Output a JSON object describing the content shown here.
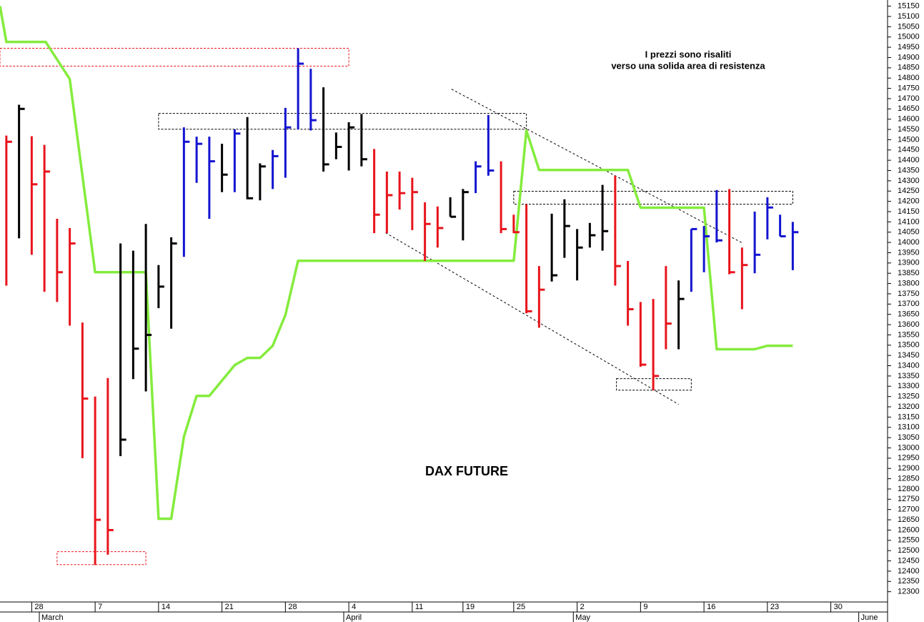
{
  "chart_data": {
    "type": "ohlc",
    "title": "DAX FUTURE",
    "annotations": [
      "I prezzi sono risaliti",
      "verso una solida area di resistenza"
    ],
    "x": [
      0,
      1,
      2,
      3,
      4,
      5,
      6,
      7,
      8,
      9,
      10,
      11,
      12,
      13,
      14,
      15,
      16,
      17,
      18,
      19,
      20,
      21,
      22,
      23,
      24,
      25,
      26,
      27,
      28,
      29,
      30,
      31,
      32,
      33,
      34,
      35,
      36,
      37,
      38,
      39,
      40,
      41,
      42,
      43,
      44,
      45,
      46,
      47,
      48,
      49,
      50,
      51,
      52,
      53,
      54,
      55,
      56,
      57,
      58,
      59,
      60,
      61,
      62
    ],
    "high": [
      14520,
      14670,
      14517,
      14475,
      14115,
      14070,
      13610,
      13250,
      13340,
      13995,
      13960,
      14090,
      13890,
      14025,
      14560,
      14515,
      14515,
      14480,
      14550,
      14610,
      14385,
      14450,
      14655,
      14945,
      14845,
      14755,
      14535,
      14585,
      14625,
      14455,
      14345,
      14345,
      14315,
      14195,
      14175,
      14220,
      14260,
      14395,
      14620,
      14395,
      14135,
      14185,
      13885,
      14140,
      14210,
      14065,
      14095,
      14280,
      14325,
      13910,
      13710,
      13725,
      13885,
      13815,
      14065,
      14080,
      14255,
      14260,
      13975,
      14150,
      14220,
      14135,
      14100
    ],
    "low": [
      13790,
      14020,
      13940,
      13760,
      13710,
      13595,
      12950,
      12430,
      12480,
      12960,
      13335,
      13275,
      13680,
      13580,
      13930,
      14290,
      14115,
      14245,
      14245,
      14210,
      14205,
      14260,
      14315,
      14550,
      14545,
      14345,
      14405,
      14350,
      14370,
      14045,
      14045,
      14160,
      14060,
      13910,
      13975,
      14125,
      14010,
      14240,
      14325,
      14045,
      14045,
      13655,
      13585,
      13810,
      13925,
      13815,
      13975,
      13960,
      13790,
      13595,
      13395,
      13280,
      13480,
      13480,
      13760,
      13855,
      14000,
      13845,
      13675,
      13850,
      14015,
      14030,
      13865
    ],
    "close": [
      14490,
      14650,
      14283,
      14345,
      13855,
      13995,
      13240,
      12650,
      12600,
      13040,
      13483,
      13550,
      13785,
      13995,
      14490,
      14480,
      14395,
      14330,
      14530,
      14215,
      14370,
      14420,
      14560,
      14870,
      14595,
      14380,
      14465,
      14560,
      14405,
      14135,
      14230,
      14240,
      14245,
      14090,
      14070,
      14125,
      14245,
      14370,
      14350,
      14065,
      14050,
      13665,
      13770,
      13840,
      14080,
      13975,
      14035,
      14055,
      13885,
      13675,
      13405,
      13350,
      13605,
      13725,
      14065,
      14030,
      14010,
      13855,
      13890,
      13940,
      14170,
      14030,
      14050
    ],
    "colors": [
      "#e8141c",
      "#000000",
      "#e8141c",
      "#e8141c",
      "#e8141c",
      "#e8141c",
      "#e8141c",
      "#e8141c",
      "#e8141c",
      "#000000",
      "#000000",
      "#000000",
      "#000000",
      "#000000",
      "#1414d0",
      "#1414d0",
      "#1414d0",
      "#000000",
      "#1414d0",
      "#000000",
      "#000000",
      "#1414d0",
      "#1414d0",
      "#1414d0",
      "#1414d0",
      "#000000",
      "#000000",
      "#000000",
      "#000000",
      "#e8141c",
      "#e8141c",
      "#e8141c",
      "#e8141c",
      "#e8141c",
      "#e8141c",
      "#000000",
      "#000000",
      "#1414d0",
      "#1414d0",
      "#e8141c",
      "#e8141c",
      "#e8141c",
      "#e8141c",
      "#000000",
      "#000000",
      "#000000",
      "#000000",
      "#000000",
      "#e8141c",
      "#e8141c",
      "#e8141c",
      "#e8141c",
      "#e8141c",
      "#000000",
      "#1414d0",
      "#1414d0",
      "#1414d0",
      "#e8141c",
      "#e8141c",
      "#1414d0",
      "#1414d0",
      "#1414d0",
      "#1414d0"
    ],
    "line": {
      "color": "#84ec3c",
      "x": [
        -0.5,
        0,
        3.1,
        5,
        7,
        11,
        12,
        13,
        14,
        15,
        16,
        18,
        19,
        20,
        21,
        22,
        23,
        40,
        41,
        42,
        49,
        50,
        55,
        56,
        59,
        60,
        62
      ],
      "values": [
        15150,
        14976,
        14976,
        14795,
        13855,
        13855,
        12655,
        12655,
        13055,
        13253,
        13253,
        13403,
        13438,
        13438,
        13497,
        13647,
        13911,
        13911,
        14545,
        14353,
        14353,
        14169,
        14169,
        13480,
        13480,
        13497,
        13497
      ]
    },
    "zones": [
      {
        "x": [
          -0.5,
          27
        ],
        "y": [
          14858,
          14945
        ],
        "color": "#e8141c"
      },
      {
        "x": [
          12,
          41
        ],
        "y": [
          14551,
          14628
        ],
        "color": "#000000"
      },
      {
        "x": [
          40,
          62
        ],
        "y": [
          14186,
          14249
        ],
        "color": "#000000"
      },
      {
        "x": [
          48.1,
          54
        ],
        "y": [
          13281,
          13337
        ],
        "color": "#000000"
      },
      {
        "x": [
          4,
          11
        ],
        "y": [
          12432,
          12495
        ],
        "color": "#e8141c"
      }
    ],
    "trendlines": [
      {
        "x": [
          35.1,
          58.1
        ],
        "y": [
          14746,
          13995
        ]
      },
      {
        "x": [
          29.9,
          53
        ],
        "y": [
          14047,
          13212
        ]
      }
    ],
    "xlim": [
      -0.5,
      69.36
    ],
    "ylim": [
      12250,
      15180
    ],
    "xticks": [
      {
        "value": 2,
        "label": "28"
      },
      {
        "value": 7,
        "label": "7"
      },
      {
        "value": 12,
        "label": "14"
      },
      {
        "value": 17,
        "label": "21"
      },
      {
        "value": 22,
        "label": "28"
      },
      {
        "value": 27,
        "label": "4"
      },
      {
        "value": 32,
        "label": "11"
      },
      {
        "value": 36,
        "label": "19"
      },
      {
        "value": 40,
        "label": "25"
      },
      {
        "value": 45,
        "label": "2"
      },
      {
        "value": 50,
        "label": "9"
      },
      {
        "value": 55,
        "label": "16"
      },
      {
        "value": 60,
        "label": "23"
      },
      {
        "value": 65,
        "label": "30"
      }
    ],
    "month_ticks": [
      {
        "value": 2.6,
        "label": "March"
      },
      {
        "value": 26.6,
        "label": "April"
      },
      {
        "value": 44.7,
        "label": "May"
      },
      {
        "value": 67.2,
        "label": "June"
      }
    ],
    "yticks": [
      15150,
      15100,
      15050,
      15000,
      14950,
      14900,
      14850,
      14800,
      14750,
      14700,
      14650,
      14600,
      14550,
      14500,
      14450,
      14400,
      14350,
      14300,
      14250,
      14200,
      14150,
      14100,
      14050,
      14000,
      13950,
      13900,
      13850,
      13800,
      13750,
      13700,
      13650,
      13600,
      13550,
      13500,
      13450,
      13400,
      13350,
      13300,
      13250,
      13200,
      13150,
      13100,
      13050,
      13000,
      12950,
      12900,
      12850,
      12800,
      12750,
      12700,
      12650,
      12600,
      12550,
      12500,
      12450,
      12400,
      12350,
      12300
    ],
    "grid": false
  }
}
